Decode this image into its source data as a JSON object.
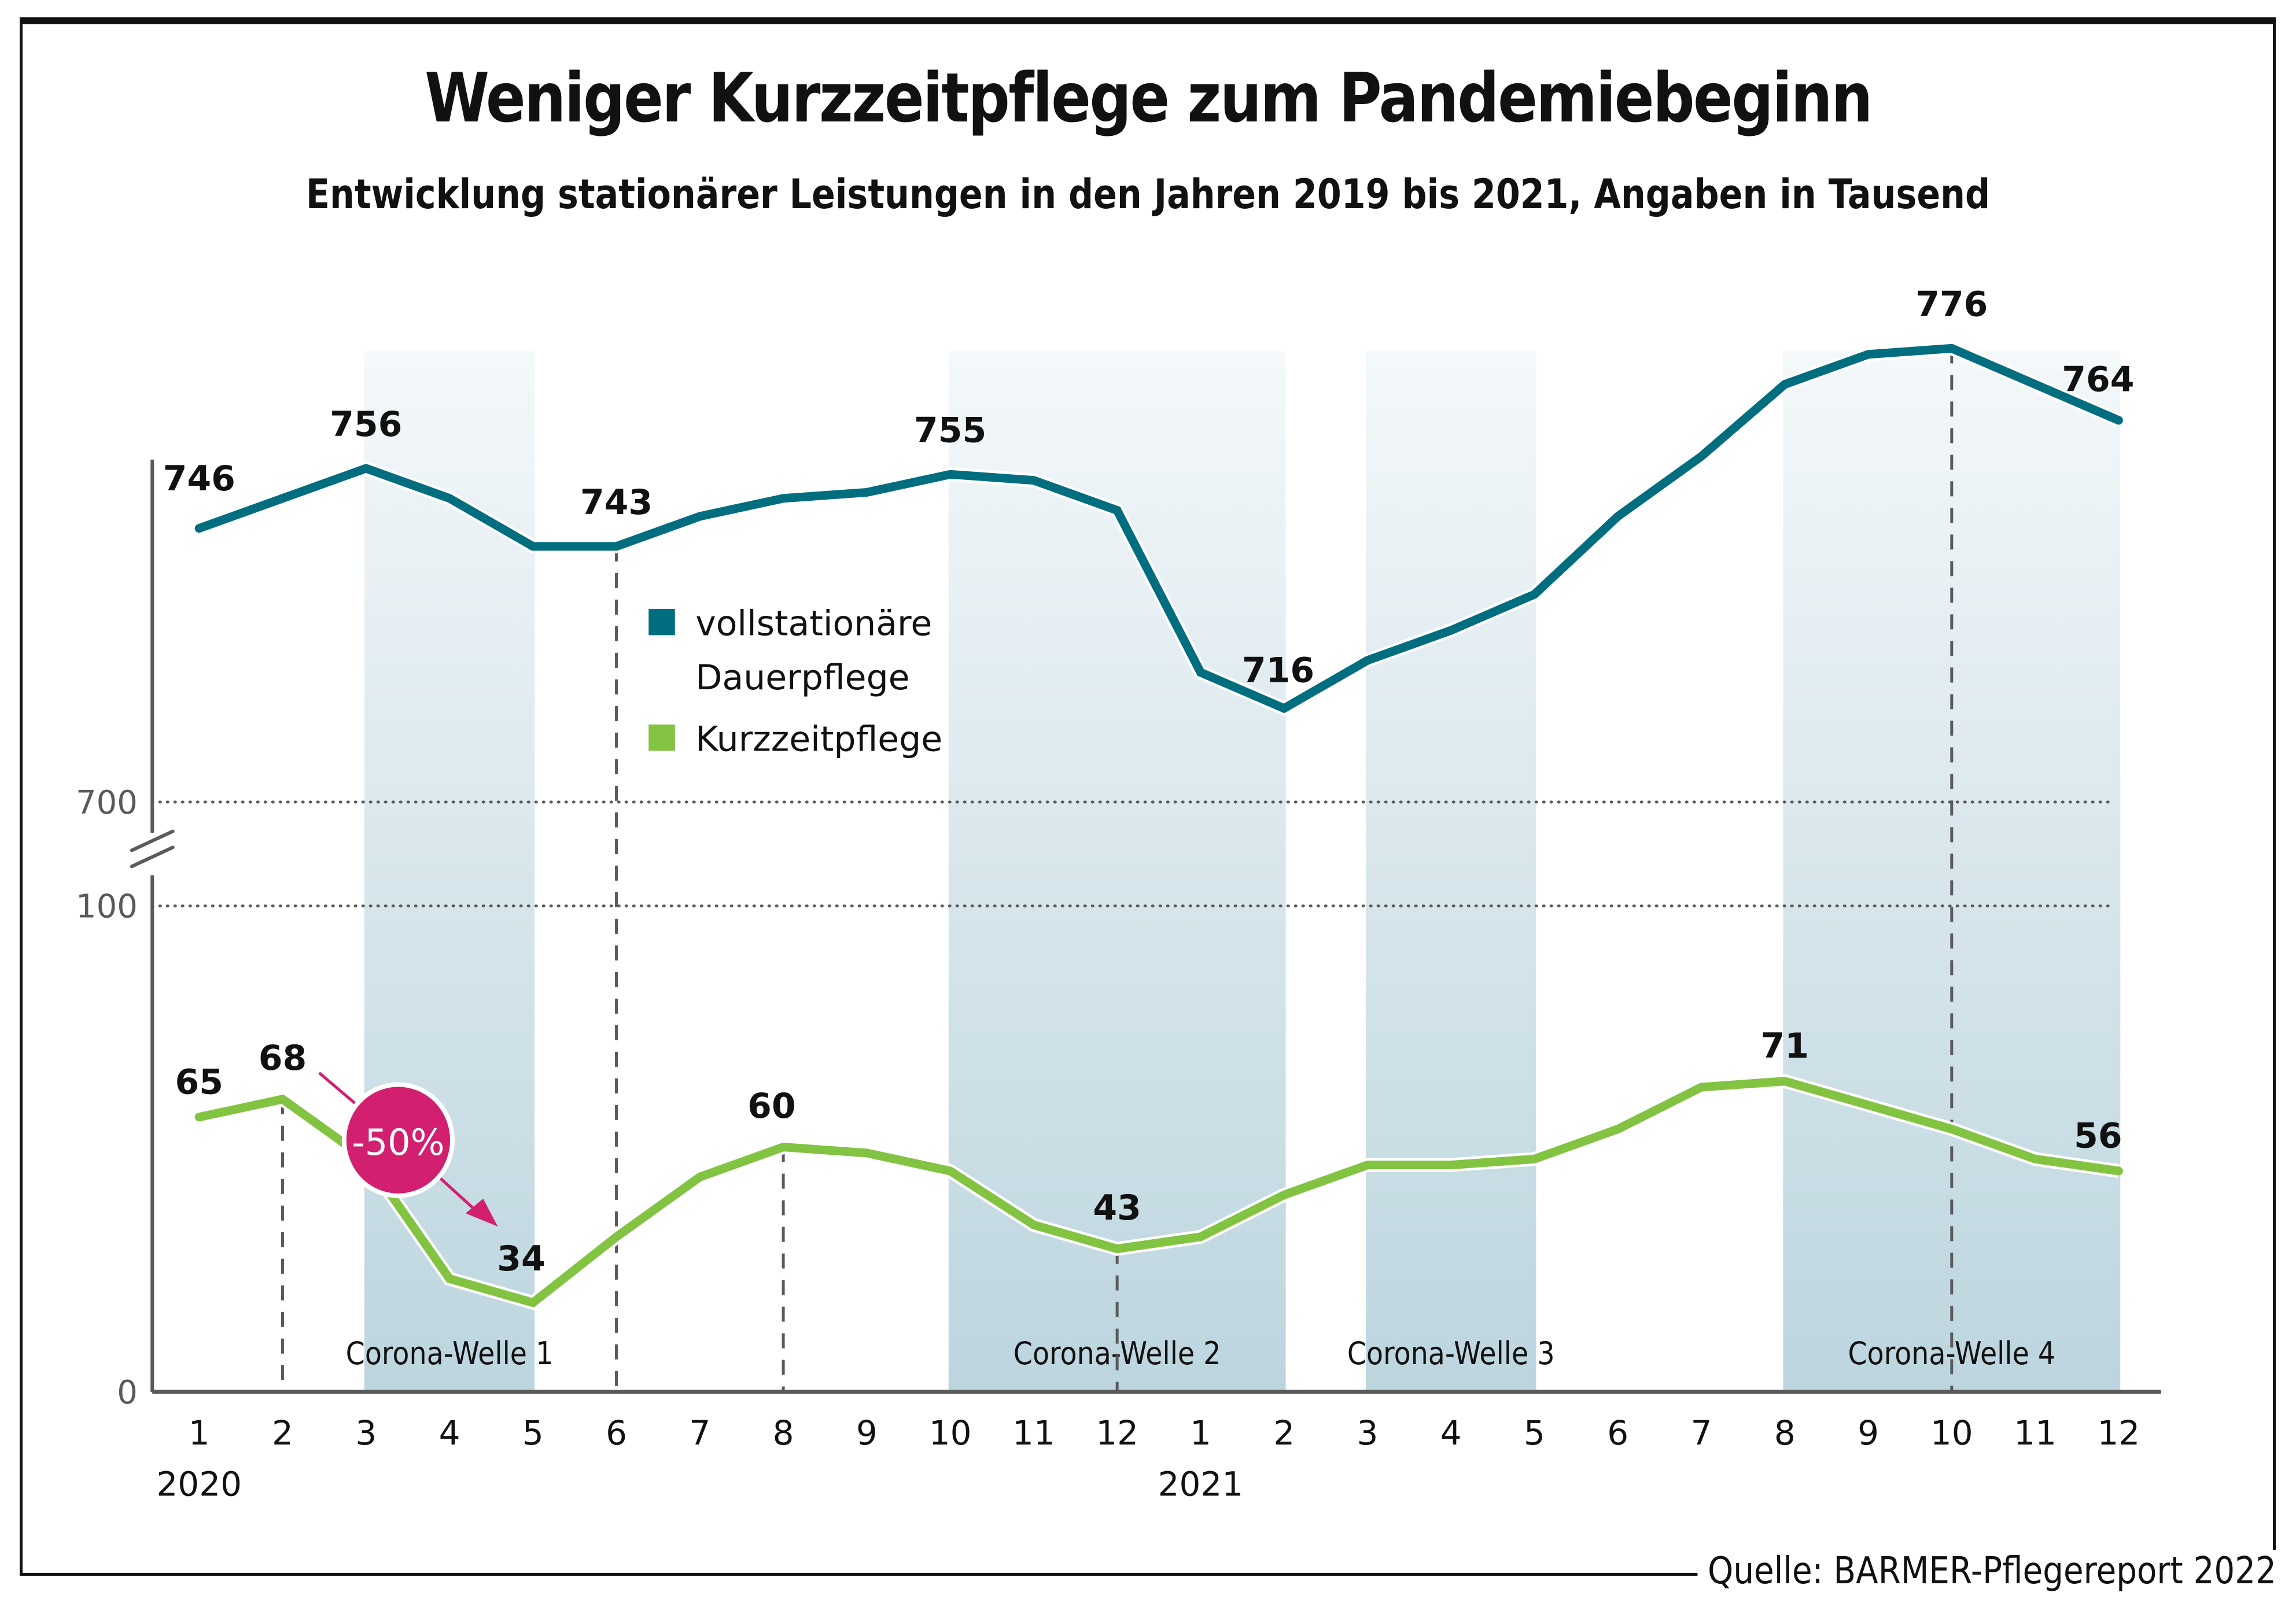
{
  "chart_data": {
    "type": "line",
    "title": "Weniger Kurzzeitpflege zum Pandemiebeginn",
    "subtitle": "Entwicklung stationärer Leistungen in den Jahren 2019 bis 2021, Angaben in Tausend",
    "xlabel": "",
    "ylabel": "",
    "categories": [
      "1",
      "2",
      "3",
      "4",
      "5",
      "6",
      "7",
      "8",
      "9",
      "10",
      "11",
      "12",
      "1",
      "2",
      "3",
      "4",
      "5",
      "6",
      "7",
      "8",
      "9",
      "10",
      "11",
      "12"
    ],
    "year_labels": [
      {
        "index": 0,
        "label": "2020"
      },
      {
        "index": 12,
        "label": "2021"
      }
    ],
    "y_axis": {
      "broken": true,
      "ticks": [
        {
          "value": 0,
          "label": "0"
        },
        {
          "value": 100,
          "label": "100"
        },
        {
          "value": 700,
          "label": "700"
        }
      ],
      "lower_segment": [
        0,
        100
      ],
      "upper_segment": [
        700,
        780
      ]
    },
    "grid": "dotted at 100 and 700",
    "series": [
      {
        "name": "vollstationäre Dauerpflege",
        "color": "#006e7f",
        "values": [
          746,
          751,
          756,
          751,
          743,
          743,
          748,
          751,
          752,
          755,
          754,
          749,
          722,
          716,
          724,
          729,
          735,
          748,
          758,
          770,
          775,
          776,
          770,
          764
        ],
        "labeled_points": [
          {
            "index": 0,
            "label": "746"
          },
          {
            "index": 2,
            "label": "756"
          },
          {
            "index": 5,
            "label": "743"
          },
          {
            "index": 9,
            "label": "755"
          },
          {
            "index": 13,
            "label": "716"
          },
          {
            "index": 21,
            "label": "776"
          },
          {
            "index": 23,
            "label": "764"
          }
        ]
      },
      {
        "name": "Kurzzeitpflege",
        "color": "#82c341",
        "values": [
          65,
          68,
          58,
          38,
          34,
          45,
          55,
          60,
          59,
          56,
          47,
          43,
          45,
          52,
          57,
          57,
          58,
          63,
          70,
          71,
          67,
          63,
          58,
          56
        ],
        "labeled_points": [
          {
            "index": 0,
            "label": "65"
          },
          {
            "index": 1,
            "label": "68"
          },
          {
            "index": 4,
            "label": "34"
          },
          {
            "index": 7,
            "label": "60"
          },
          {
            "index": 11,
            "label": "43"
          },
          {
            "index": 19,
            "label": "71"
          },
          {
            "index": 23,
            "label": "56"
          }
        ]
      }
    ],
    "shaded_periods": [
      {
        "label": "Corona-Welle 1",
        "from_index": 2,
        "to_index": 4
      },
      {
        "label": "Corona-Welle 2",
        "from_index": 9,
        "to_index": 13
      },
      {
        "label": "Corona-Welle 3",
        "from_index": 14,
        "to_index": 16
      },
      {
        "label": "Corona-Welle 4",
        "from_index": 19,
        "to_index": 23
      }
    ],
    "reference_lines": [
      {
        "index": 1,
        "series": "Kurzzeitpflege"
      },
      {
        "index": 5,
        "series": "vollstationäre Dauerpflege"
      },
      {
        "index": 7,
        "series": "Kurzzeitpflege"
      },
      {
        "index": 11,
        "series": "Kurzzeitpflege"
      },
      {
        "index": 21,
        "series": "vollstationäre Dauerpflege"
      }
    ],
    "annotation": {
      "label": "-50%",
      "color": "#d21f6f",
      "from_index": 1,
      "to_index": 4,
      "series": "Kurzzeitpflege"
    },
    "legend": {
      "placement": "center-left",
      "entries": [
        {
          "label_lines": [
            "vollstationäre",
            "Dauerpflege"
          ],
          "color": "#006e7f"
        },
        {
          "label_lines": [
            "Kurzzeitpflege"
          ],
          "color": "#82c341"
        }
      ]
    },
    "shade_colors": {
      "top": "#f4f8fa",
      "bottom": "#bcd5de"
    },
    "axis_color": "#5a5a5c"
  },
  "source": "Quelle: BARMER-Pflegereport 2022"
}
